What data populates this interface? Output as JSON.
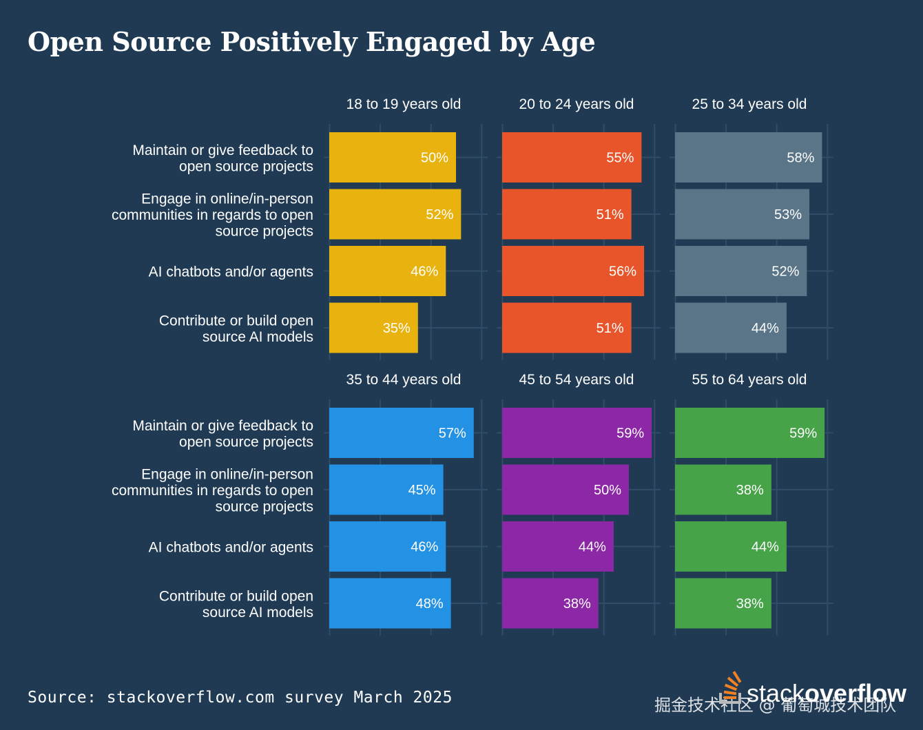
{
  "title": "Open Source Positively Engaged by Age",
  "source": "Source: stackoverflow.com survey March 2025",
  "logo": {
    "light": "stack",
    "bold": "overflow",
    "icon": "stackoverflow-icon"
  },
  "watermark": "掘金技术社区 @ 葡萄城技术团队",
  "colors": {
    "background": "#1f3a52",
    "grid": "#2f4d66",
    "18 to 19 years old": "#e8b30e",
    "20 to 24 years old": "#e8552a",
    "25 to 34 years old": "#5a7587",
    "35 to 44 years old": "#2492e4",
    "45 to 54 years old": "#8c27a6",
    "55 to 64 years old": "#46a348"
  },
  "chart_data": {
    "type": "bar",
    "orientation": "horizontal",
    "facet_layout": "2 rows x 3 columns",
    "categories": [
      "Maintain or give feedback to\nopen source projects",
      "Engage in online/in-person\ncommunities in regards to open\nsource projects",
      "AI chatbots and/or agents",
      "Contribute or build open\nsource AI models"
    ],
    "value_suffix": "%",
    "xlim": [
      0,
      70
    ],
    "grid": true,
    "series": [
      {
        "name": "18 to 19 years old",
        "values": [
          50,
          52,
          46,
          35
        ]
      },
      {
        "name": "20 to 24 years old",
        "values": [
          55,
          51,
          56,
          51
        ]
      },
      {
        "name": "25 to 34 years old",
        "values": [
          58,
          53,
          52,
          44
        ]
      },
      {
        "name": "35 to 44 years old",
        "values": [
          57,
          45,
          46,
          48
        ]
      },
      {
        "name": "45 to 54 years old",
        "values": [
          59,
          50,
          44,
          38
        ]
      },
      {
        "name": "55 to 64 years old",
        "values": [
          59,
          38,
          44,
          38
        ]
      }
    ]
  }
}
